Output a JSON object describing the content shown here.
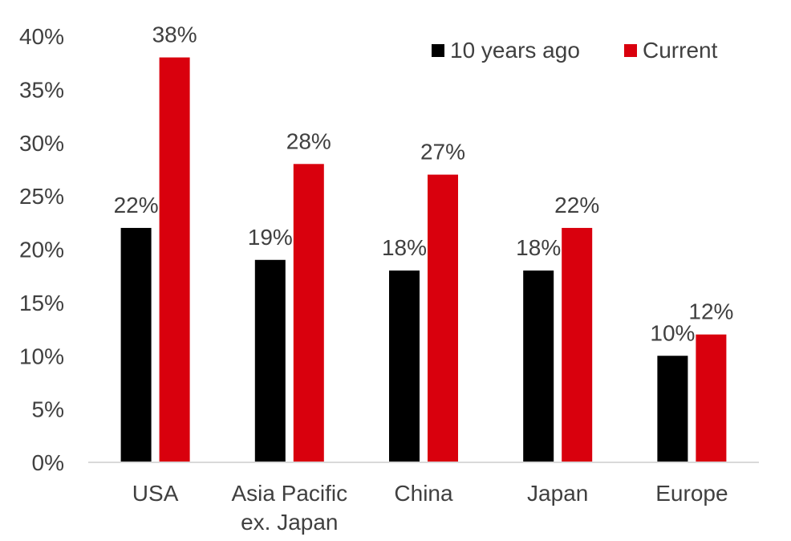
{
  "chart_data": {
    "type": "bar",
    "categories": [
      [
        "USA"
      ],
      [
        "Asia Pacific",
        "ex. Japan"
      ],
      [
        "China"
      ],
      [
        "Japan"
      ],
      [
        "Europe"
      ]
    ],
    "series": [
      {
        "name": "10 years ago",
        "color": "#000000",
        "values": [
          22,
          19,
          18,
          18,
          10
        ]
      },
      {
        "name": "Current",
        "color": "#d9000d",
        "values": [
          38,
          28,
          27,
          22,
          12
        ]
      }
    ],
    "data_labels": [
      [
        "22%",
        "19%",
        "18%",
        "18%",
        "10%"
      ],
      [
        "38%",
        "28%",
        "27%",
        "22%",
        "12%"
      ]
    ],
    "ylim": [
      0,
      40
    ],
    "y_ticks": [
      0,
      5,
      10,
      15,
      20,
      25,
      30,
      35,
      40
    ],
    "y_tick_labels": [
      "0%",
      "5%",
      "10%",
      "15%",
      "20%",
      "25%",
      "30%",
      "35%",
      "40%"
    ],
    "grid": false,
    "legend_position": "top-right",
    "axis_color": "#d9d9d9",
    "text_color": "#404040",
    "title": "",
    "xlabel": "",
    "ylabel": ""
  }
}
